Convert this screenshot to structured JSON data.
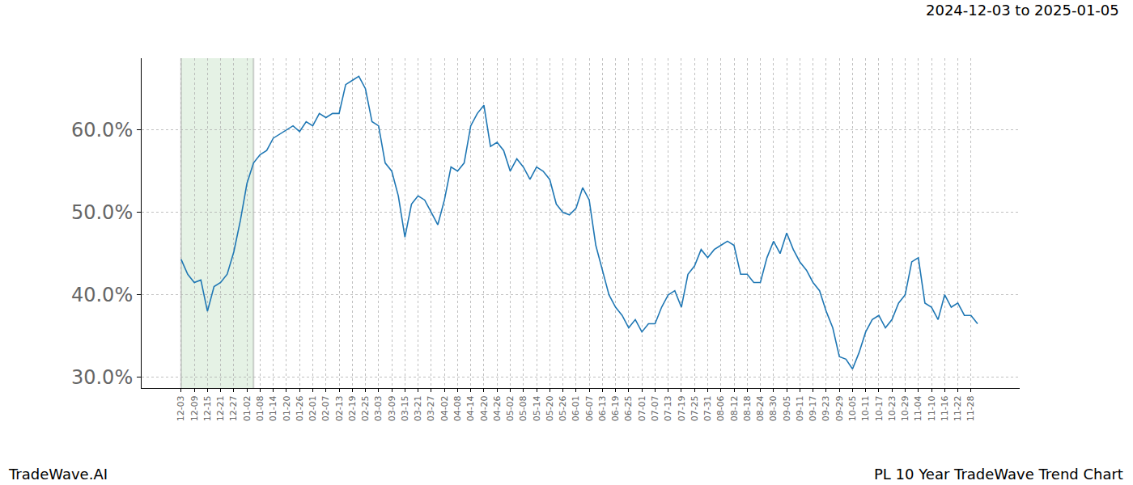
{
  "chart_data": {
    "type": "line",
    "title": "PL 10 Year TradeWave Trend Chart",
    "subtitle": "2024-12-03 to 2025-01-05",
    "annotations": [
      "TradeWave.AI"
    ],
    "color": "#1f77b4",
    "grid": true,
    "highlight": {
      "start": "12-03",
      "end": "01-05"
    },
    "categories": [
      "12-03",
      null,
      "12-09",
      null,
      "12-15",
      null,
      "12-21",
      null,
      "12-27",
      null,
      "01-02",
      null,
      "01-08",
      null,
      "01-14",
      null,
      "01-20",
      null,
      "01-26",
      null,
      "02-01",
      null,
      "02-07",
      null,
      "02-13",
      null,
      "02-19",
      null,
      "02-25",
      null,
      "03-03",
      null,
      "03-09",
      null,
      "03-15",
      null,
      "03-21",
      null,
      "03-27",
      null,
      "04-02",
      null,
      "04-08",
      null,
      "04-14",
      null,
      "04-20",
      null,
      "04-26",
      null,
      "05-02",
      null,
      "05-08",
      null,
      "05-14",
      null,
      "05-20",
      null,
      "05-26",
      null,
      "06-01",
      null,
      "06-07",
      null,
      "06-13",
      null,
      "06-19",
      null,
      "06-25",
      null,
      "07-01",
      null,
      "07-07",
      null,
      "07-13",
      null,
      "07-19",
      null,
      "07-25",
      null,
      "07-31",
      null,
      "08-06",
      null,
      "08-12",
      null,
      "08-18",
      null,
      "08-24",
      null,
      "08-30",
      null,
      "09-05",
      null,
      "09-11",
      null,
      "09-17",
      null,
      "09-23",
      null,
      "09-29",
      null,
      "10-05",
      null,
      "10-11",
      null,
      "10-17",
      null,
      "10-23",
      null,
      "10-29",
      null,
      "11-04",
      null,
      "11-10",
      null,
      "11-16",
      null,
      "11-22",
      null,
      "11-28",
      null
    ],
    "values": [
      44.3,
      42.5,
      41.5,
      41.8,
      38.0,
      41.0,
      41.5,
      42.5,
      45.2,
      49.0,
      53.5,
      56.0,
      57.0,
      57.5,
      59.0,
      59.5,
      60.0,
      60.5,
      59.8,
      61.0,
      60.5,
      62.0,
      61.5,
      62.0,
      62.0,
      65.5,
      66.0,
      66.5,
      65.0,
      61.0,
      60.5,
      56.0,
      55.0,
      52.0,
      47.0,
      51.0,
      52.0,
      51.5,
      50.0,
      48.5,
      51.5,
      55.5,
      55.0,
      56.0,
      60.5,
      62.0,
      63.0,
      58.0,
      58.5,
      57.5,
      55.0,
      56.5,
      55.5,
      54.0,
      55.5,
      55.0,
      54.0,
      51.0,
      50.0,
      49.7,
      50.5,
      53.0,
      51.5,
      46.0,
      43.0,
      40.0,
      38.5,
      37.5,
      36.0,
      37.0,
      35.5,
      36.5,
      36.5,
      38.5,
      40.0,
      40.5,
      38.5,
      42.5,
      43.5,
      45.5,
      44.5,
      45.5,
      46.0,
      46.5,
      46.0,
      42.5,
      42.5,
      41.5,
      41.5,
      44.5,
      46.5,
      45.0,
      47.5,
      45.5,
      44.0,
      43.0,
      41.5,
      40.5,
      38.0,
      36.0,
      32.5,
      32.2,
      31.0,
      33.0,
      35.5,
      37.0,
      37.5,
      36.0,
      37.0,
      39.0,
      40.0,
      44.0,
      44.5,
      39.0,
      38.5,
      37.0,
      40.0,
      38.5,
      39.0,
      37.5,
      37.5,
      36.5
    ],
    "ylim": [
      28.7,
      68.7
    ],
    "yticks": [
      {
        "value": 30,
        "label": "30.0%"
      },
      {
        "value": 40,
        "label": "40.0%"
      },
      {
        "value": 50,
        "label": "50.0%"
      },
      {
        "value": 60,
        "label": "60.0%"
      }
    ]
  }
}
